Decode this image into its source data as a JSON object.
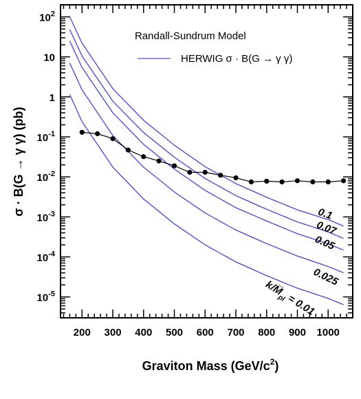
{
  "chart_data": {
    "type": "line",
    "title": "",
    "xlabel": "Graviton Mass (GeV/c²)",
    "ylabel": "σ · B(G → γ γ) (pb)",
    "xlim": [
      130,
      1080
    ],
    "ylim": [
      3e-06,
      200
    ],
    "yscale": "log",
    "x_ticks": [
      200,
      300,
      400,
      500,
      600,
      700,
      800,
      900,
      1000
    ],
    "x_tick_labels": [
      "200",
      "300",
      "400",
      "500",
      "600",
      "700",
      "800",
      "900",
      "1000"
    ],
    "y_ticks": [
      1e-05,
      0.0001,
      0.001,
      0.01,
      0.1,
      1,
      10,
      100
    ],
    "y_tick_labels": [
      {
        "base": "10",
        "exp": "-5"
      },
      {
        "base": "10",
        "exp": "-4"
      },
      {
        "base": "10",
        "exp": "-3"
      },
      {
        "base": "10",
        "exp": "-2"
      },
      {
        "base": "10",
        "exp": "-1"
      },
      {
        "base": "1",
        "exp": ""
      },
      {
        "base": "10",
        "exp": ""
      },
      {
        "base": "10",
        "exp": "2"
      }
    ],
    "legend": {
      "title": "Randall-Sundrum Model",
      "entry": "HERWIG  σ · B(G → γ γ)",
      "position": "top-right"
    },
    "series": [
      {
        "label": "0.1",
        "x": [
          160,
          200,
          300,
          400,
          500,
          600,
          700,
          800,
          900,
          1000,
          1050
        ],
        "y": [
          100,
          22,
          1.6,
          0.26,
          0.062,
          0.018,
          0.0068,
          0.0031,
          0.0015,
          0.00085,
          0.00059
        ]
      },
      {
        "label": "0.07",
        "x": [
          160,
          200,
          300,
          400,
          500,
          600,
          700,
          800,
          900,
          1000,
          1050
        ],
        "y": [
          48,
          10.5,
          0.78,
          0.128,
          0.031,
          0.0091,
          0.0034,
          0.00155,
          0.00075,
          0.00042,
          0.00029
        ]
      },
      {
        "label": "0.05",
        "x": [
          160,
          200,
          300,
          400,
          500,
          600,
          700,
          800,
          900,
          1000,
          1050
        ],
        "y": [
          25,
          5.4,
          0.4,
          0.065,
          0.0157,
          0.0046,
          0.0017,
          0.00079,
          0.00038,
          0.000212,
          0.000148
        ]
      },
      {
        "label": "0.025",
        "x": [
          160,
          200,
          300,
          400,
          500,
          600,
          700,
          800,
          900,
          1000,
          1050
        ],
        "y": [
          7.0,
          1.5,
          0.108,
          0.0175,
          0.0042,
          0.00125,
          0.00047,
          0.000215,
          0.000105,
          5.75e-05,
          4e-05
        ]
      },
      {
        "label": "k/M̅_pl = 0.01",
        "x": [
          160,
          200,
          300,
          400,
          500,
          600,
          700,
          800,
          900,
          1000,
          1050
        ],
        "y": [
          1.15,
          0.24,
          0.0175,
          0.0028,
          0.00067,
          0.0002,
          7.5e-05,
          3.4e-05,
          1.65e-05,
          9.2e-06,
          6.4e-06
        ]
      }
    ],
    "limit_series": {
      "x": [
        200,
        250,
        300,
        350,
        400,
        450,
        500,
        550,
        600,
        650,
        700,
        750,
        800,
        850,
        900,
        950,
        1000,
        1050
      ],
      "y": [
        0.13,
        0.12,
        0.09,
        0.047,
        0.032,
        0.025,
        0.019,
        0.013,
        0.013,
        0.011,
        0.0095,
        0.0075,
        0.0078,
        0.0075,
        0.008,
        0.0075,
        0.0075,
        0.008
      ]
    },
    "curve_labels": [
      {
        "text": "0.1",
        "x": 965,
        "y": 0.00115,
        "angle": 20
      },
      {
        "text": "0.07",
        "x": 960,
        "y": 0.00055,
        "angle": 22
      },
      {
        "text": "0.05",
        "x": 955,
        "y": 0.00024,
        "angle": 24
      },
      {
        "text": "0.025",
        "x": 950,
        "y": 3.7e-05,
        "angle": 26
      },
      {
        "text": "k/M̅",
        "sub": "pl",
        "rest": " = 0.01",
        "x": 795,
        "y": 1.85e-05,
        "angle": 32
      }
    ],
    "colors": {
      "curve": "#4f4fd1",
      "limit": "#000000",
      "frame": "#000000"
    }
  }
}
